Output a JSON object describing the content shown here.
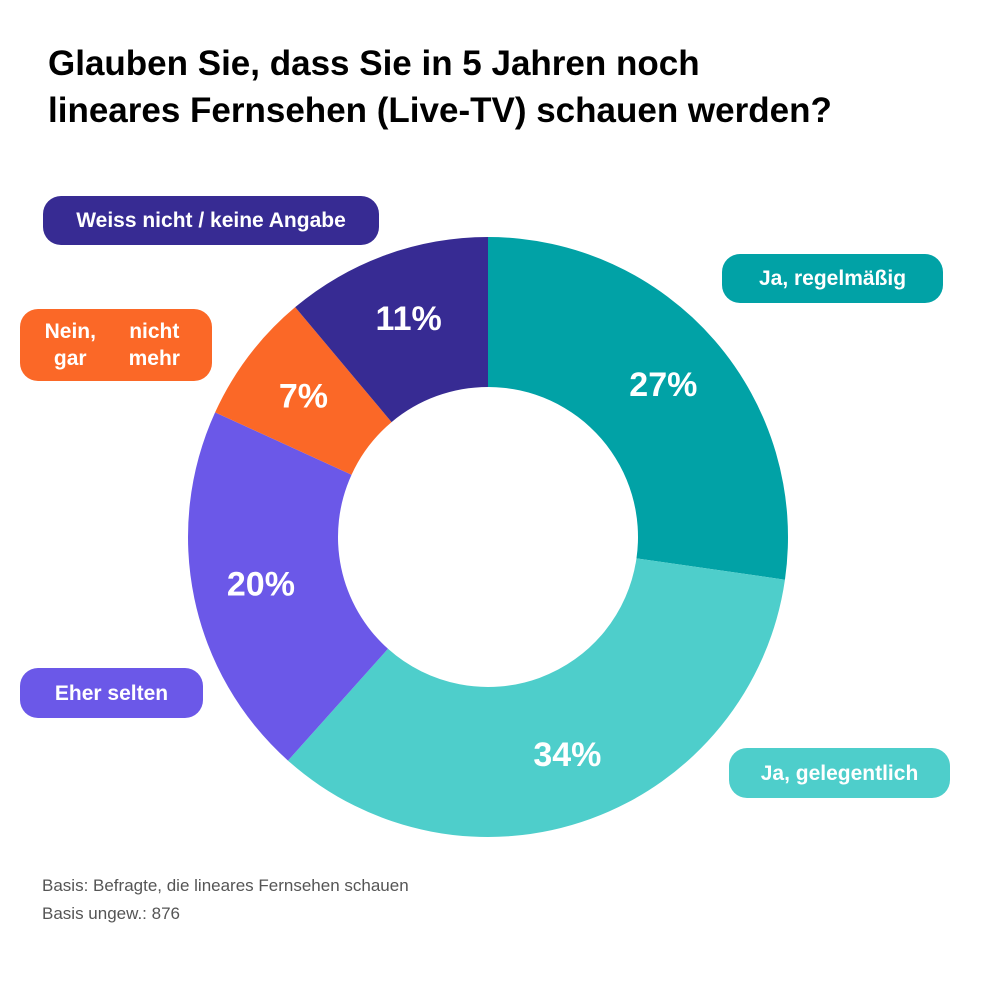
{
  "title": {
    "line1": "Glauben Sie, dass Sie in 5 Jahren noch",
    "line2": "lineares Fernsehen (Live-TV) schauen werden?"
  },
  "chart_data": {
    "type": "pie",
    "variant": "donut",
    "unit": "%",
    "slices": [
      {
        "label": "Ja, regelmäßig",
        "value": 27,
        "display": "27%",
        "color": "#01A2A6"
      },
      {
        "label": "Ja, gelegentlich",
        "value": 34,
        "display": "34%",
        "color": "#4ECECB"
      },
      {
        "label": "Eher selten",
        "value": 20,
        "display": "20%",
        "color": "#6B58E8"
      },
      {
        "label": "Nein, gar nicht mehr",
        "label_lines": [
          "Nein, gar",
          "nicht mehr"
        ],
        "value": 7,
        "display": "7%",
        "color": "#FB6827"
      },
      {
        "label": "Weiss nicht / keine Angabe",
        "value": 11,
        "display": "11%",
        "color": "#372B93"
      }
    ]
  },
  "footnote": {
    "line1": "Basis: Befragte, die lineares Fernsehen schauen",
    "line2": "Basis ungew.: 876"
  }
}
